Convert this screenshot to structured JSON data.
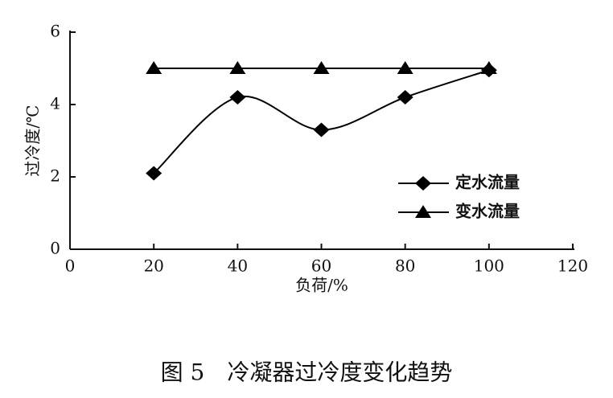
{
  "chart_data": {
    "type": "line",
    "caption": "图 5　冷凝器过冷度变化趋势",
    "xlabel": "负荷/%",
    "ylabel": "过冷度/℃",
    "x": [
      20,
      40,
      60,
      80,
      100
    ],
    "series": [
      {
        "name": "定水流量",
        "color": "#000000",
        "marker": "diamond",
        "smooth": true,
        "values": [
          2.1,
          4.2,
          3.3,
          4.2,
          4.95
        ]
      },
      {
        "name": "变水流量",
        "color": "#000000",
        "marker": "triangle",
        "smooth": false,
        "values": [
          5,
          5,
          5,
          5,
          5
        ]
      }
    ],
    "xlim": [
      0,
      120
    ],
    "xticks": [
      0,
      20,
      40,
      60,
      80,
      100,
      120
    ],
    "ylim": [
      0,
      6
    ],
    "yticks": [
      0,
      2,
      4,
      6
    ],
    "grid": false
  }
}
